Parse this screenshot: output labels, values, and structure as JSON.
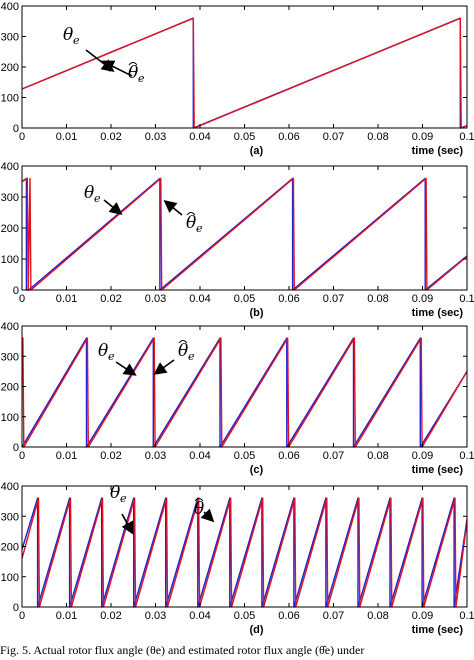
{
  "caption": "Fig. 5. Actual rotor flux angle (θe) and estimated rotor flux angle (θ̂e) under",
  "colors": {
    "actual": "#1f1fd6",
    "estimated": "#e0121e",
    "axis": "#000000"
  },
  "chart_data": [
    {
      "type": "line",
      "label": "(a)",
      "xlabel": "time (sec)",
      "xlim": [
        0,
        0.1
      ],
      "ylim": [
        0,
        400
      ],
      "xticks": [
        "0",
        "0.01",
        "0.02",
        "0.03",
        "0.04",
        "0.05",
        "0.06",
        "0.07",
        "0.08",
        "0.09",
        "0.1"
      ],
      "yticks": [
        "0",
        "100",
        "200",
        "300",
        "400"
      ],
      "annotations": [
        {
          "symbol": "θ",
          "sub": "e",
          "hat": false
        },
        {
          "symbol": "θ",
          "sub": "e",
          "hat": true
        }
      ],
      "series": [
        {
          "x": [
            0,
            0.0385,
            0.0385,
            0.0985,
            0.0985,
            0.1
          ],
          "y": [
            128,
            360,
            0,
            360,
            0,
            8
          ]
        },
        {
          "x": [
            0,
            0.0385,
            0.0387,
            0.0985,
            0.0987,
            0.1
          ],
          "y": [
            128,
            360,
            0,
            360,
            0,
            8
          ]
        }
      ]
    },
    {
      "type": "line",
      "label": "(b)",
      "xlabel": "time (sec)",
      "xlim": [
        0,
        0.1
      ],
      "ylim": [
        0,
        400
      ],
      "xticks": [
        "0",
        "0.01",
        "0.02",
        "0.03",
        "0.04",
        "0.05",
        "0.06",
        "0.07",
        "0.08",
        "0.09",
        "0.1"
      ],
      "yticks": [
        "0",
        "100",
        "200",
        "300",
        "400"
      ],
      "annotations": [
        {
          "symbol": "θ",
          "sub": "e",
          "hat": false
        },
        {
          "symbol": "θ",
          "sub": "e",
          "hat": true
        }
      ],
      "series": [
        {
          "x": [
            0,
            0.001,
            0.001,
            0.0015,
            0.0015,
            0.031,
            0.031,
            0.0608,
            0.0608,
            0.0906,
            0.0906,
            0.1
          ],
          "y": [
            350,
            360,
            0,
            0,
            0,
            360,
            0,
            360,
            0,
            360,
            0,
            110
          ]
        },
        {
          "x": [
            0,
            0.0012,
            0.0014,
            0.0018,
            0.002,
            0.0312,
            0.0314,
            0.061,
            0.0612,
            0.0908,
            0.091,
            0.1
          ],
          "y": [
            350,
            360,
            0,
            360,
            0,
            360,
            0,
            360,
            0,
            360,
            0,
            108
          ]
        }
      ]
    },
    {
      "type": "line",
      "label": "(c)",
      "xlabel": "time (sec)",
      "xlim": [
        0,
        0.1
      ],
      "ylim": [
        0,
        400
      ],
      "xticks": [
        "0",
        "0.01",
        "0.02",
        "0.03",
        "0.04",
        "0.05",
        "0.06",
        "0.07",
        "0.08",
        "0.09",
        "0.1"
      ],
      "yticks": [
        "0",
        "100",
        "200",
        "300",
        "400"
      ],
      "annotations": [
        {
          "symbol": "θ",
          "sub": "e",
          "hat": false
        },
        {
          "symbol": "θ",
          "sub": "e",
          "hat": true
        }
      ],
      "series": [
        {
          "x": [
            0,
            0.0145,
            0.0145,
            0.0295,
            0.0295,
            0.0445,
            0.0445,
            0.0595,
            0.0595,
            0.0745,
            0.0745,
            0.0895,
            0.0895,
            0.1
          ],
          "y": [
            0,
            360,
            0,
            360,
            0,
            360,
            0,
            360,
            0,
            360,
            0,
            360,
            0,
            250
          ]
        },
        {
          "x": [
            0,
            0.0002,
            0.0004,
            0.0147,
            0.0149,
            0.0297,
            0.0299,
            0.0447,
            0.0449,
            0.0597,
            0.0599,
            0.0747,
            0.0749,
            0.0897,
            0.0899,
            0.1
          ],
          "y": [
            360,
            360,
            0,
            360,
            0,
            360,
            0,
            360,
            0,
            360,
            0,
            360,
            0,
            360,
            0,
            250
          ]
        }
      ]
    },
    {
      "type": "line",
      "label": "(d)",
      "xlabel": "time (sec)",
      "xlim": [
        0,
        0.1
      ],
      "ylim": [
        0,
        400
      ],
      "xticks": [
        "0",
        "0.01",
        "0.02",
        "0.03",
        "0.04",
        "0.05",
        "0.06",
        "0.07",
        "0.08",
        "0.09",
        "0.1"
      ],
      "yticks": [
        "0",
        "100",
        "200",
        "300",
        "400"
      ],
      "annotations": [
        {
          "symbol": "θ",
          "sub": "e",
          "hat": false
        },
        {
          "symbol": "θ",
          "sub": "e",
          "hat": true
        }
      ],
      "series": [
        {
          "x": [
            0,
            0.0035,
            0.0035,
            0.0107,
            0.0107,
            0.0179,
            0.0179,
            0.0251,
            0.0251,
            0.0323,
            0.0323,
            0.0395,
            0.0395,
            0.0467,
            0.0467,
            0.0539,
            0.0539,
            0.0611,
            0.0611,
            0.0683,
            0.0683,
            0.0755,
            0.0755,
            0.0827,
            0.0827,
            0.0899,
            0.0899,
            0.0971,
            0.0971,
            0.1
          ],
          "y": [
            190,
            360,
            0,
            360,
            0,
            360,
            0,
            360,
            0,
            360,
            0,
            360,
            0,
            360,
            0,
            360,
            0,
            360,
            0,
            360,
            0,
            360,
            0,
            360,
            0,
            360,
            0,
            360,
            0,
            290
          ]
        },
        {
          "x": [
            0,
            0.0037,
            0.0039,
            0.0109,
            0.0111,
            0.0181,
            0.0183,
            0.0253,
            0.0255,
            0.0325,
            0.0327,
            0.0397,
            0.0399,
            0.0469,
            0.0471,
            0.0541,
            0.0543,
            0.0613,
            0.0615,
            0.0685,
            0.0687,
            0.0757,
            0.0759,
            0.0829,
            0.0831,
            0.0901,
            0.0903,
            0.0973,
            0.0975,
            0.1
          ],
          "y": [
            160,
            360,
            0,
            360,
            0,
            360,
            0,
            360,
            0,
            360,
            0,
            360,
            0,
            360,
            0,
            360,
            0,
            360,
            0,
            360,
            0,
            360,
            0,
            360,
            0,
            360,
            0,
            360,
            0,
            285
          ]
        }
      ]
    }
  ]
}
